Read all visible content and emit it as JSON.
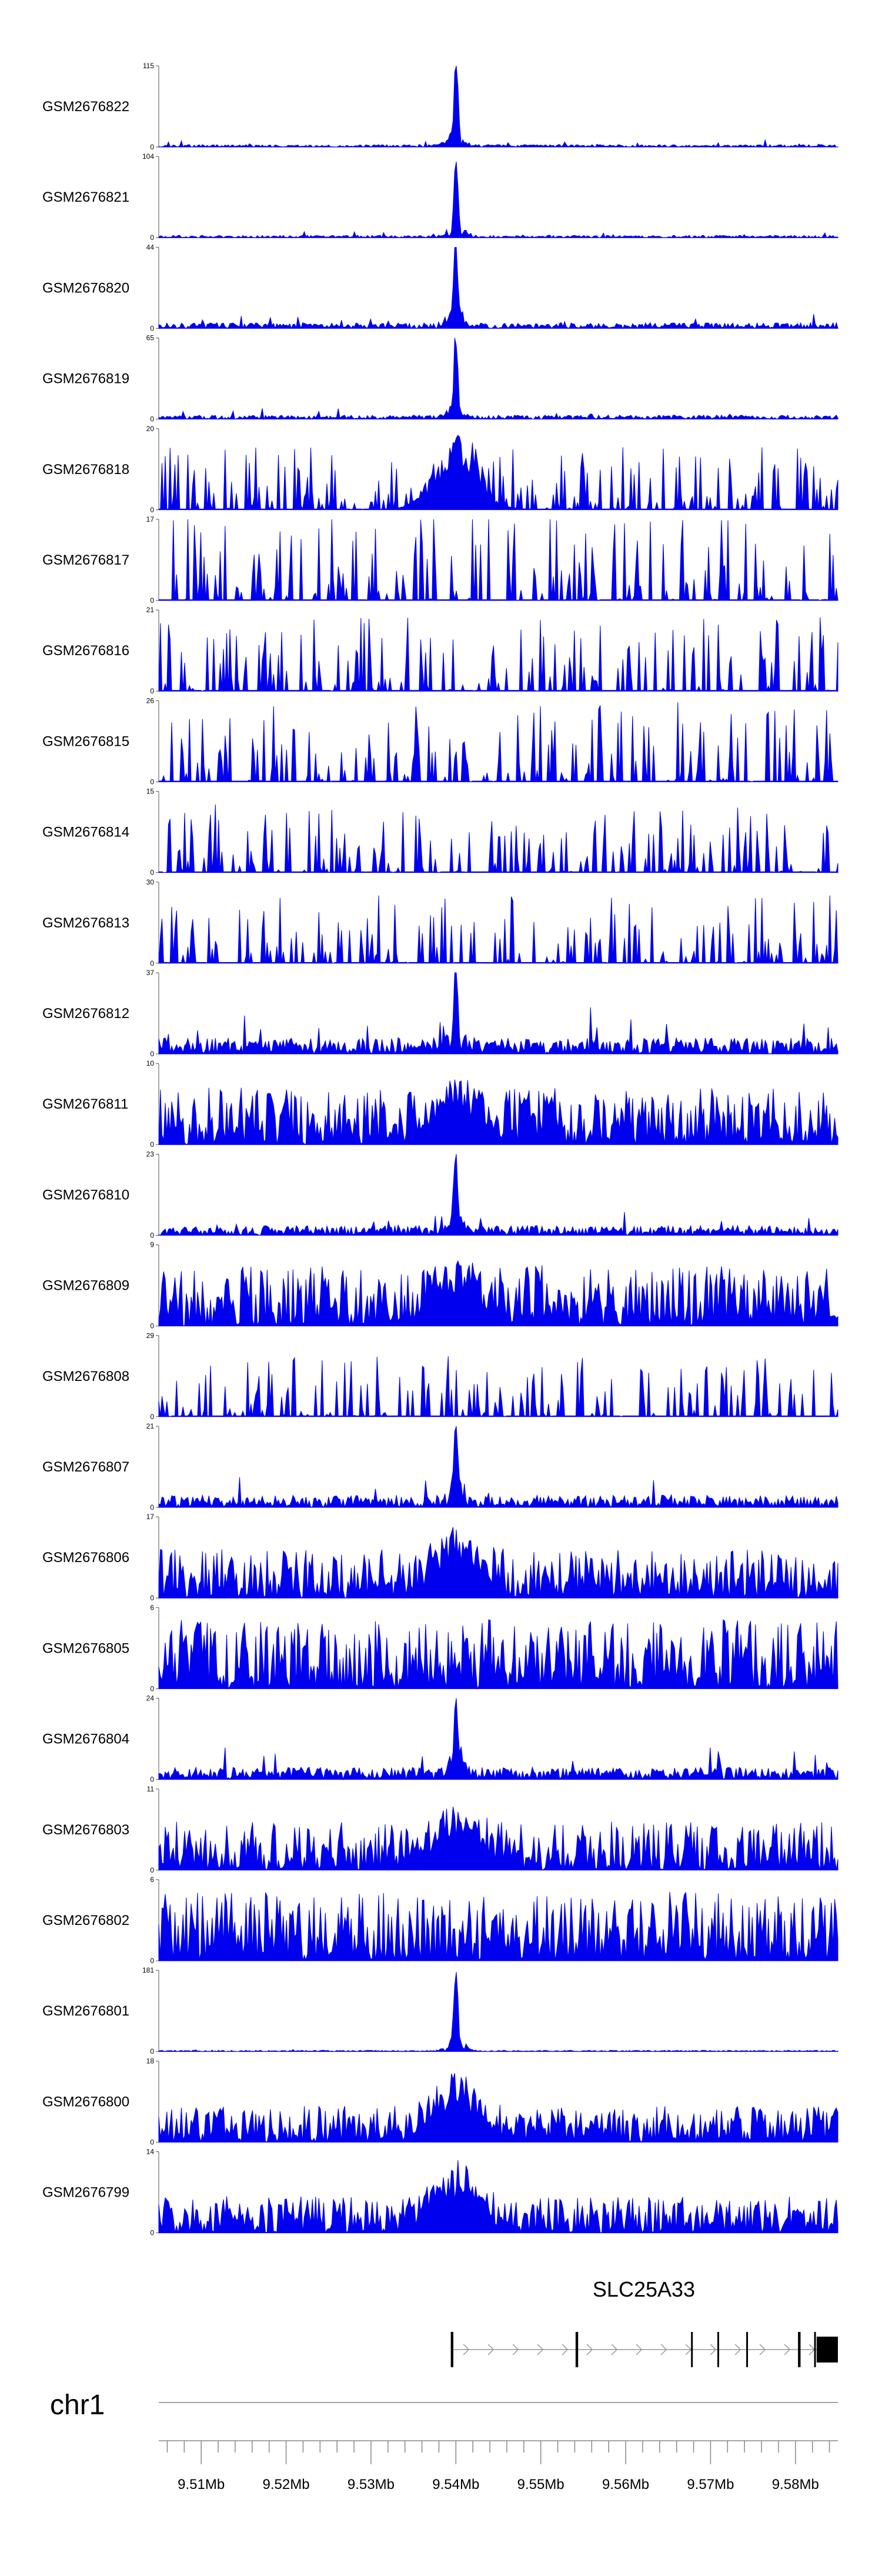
{
  "chart_data": {
    "type": "area",
    "subtype": "genome-browser-coverage-tracks",
    "color": "#0000ee",
    "x_domain": [
      9505000,
      9585000
    ],
    "x_ticks": [
      {
        "value": 9510000,
        "label": "9.51Mb"
      },
      {
        "value": 9520000,
        "label": "9.52Mb"
      },
      {
        "value": 9530000,
        "label": "9.53Mb"
      },
      {
        "value": 9540000,
        "label": "9.54Mb"
      },
      {
        "value": 9550000,
        "label": "9.55Mb"
      },
      {
        "value": 9560000,
        "label": "9.56Mb"
      },
      {
        "value": 9570000,
        "label": "9.57Mb"
      },
      {
        "value": 9580000,
        "label": "9.58Mb"
      }
    ],
    "chromosome": "chr1",
    "gene": {
      "name": "SLC25A33",
      "start": 9539500,
      "end": 9585000,
      "strand": "+",
      "exons": [
        [
          9539400,
          9539700
        ],
        [
          9554100,
          9554400
        ],
        [
          9567700,
          9567900
        ],
        [
          9570800,
          9571000
        ],
        [
          9574200,
          9574400
        ],
        [
          9580300,
          9580600
        ],
        [
          9582200,
          9582400
        ],
        [
          9582500,
          9585000
        ]
      ]
    },
    "tracks": [
      {
        "name": "GSM2676822",
        "ymax": "115",
        "ymin": "0",
        "profile": "peak",
        "peak_pos": 9540000,
        "noise": 0.03,
        "peak_height": 1.0
      },
      {
        "name": "GSM2676821",
        "ymax": "104",
        "ymin": "0",
        "profile": "peak",
        "peak_pos": 9540000,
        "noise": 0.03,
        "peak_height": 1.0
      },
      {
        "name": "GSM2676820",
        "ymax": "44",
        "ymin": "0",
        "profile": "peak",
        "peak_pos": 9540000,
        "noise": 0.07,
        "peak_height": 1.0
      },
      {
        "name": "GSM2676819",
        "ymax": "65",
        "ymin": "0",
        "profile": "peak",
        "peak_pos": 9540000,
        "noise": 0.05,
        "peak_height": 1.0
      },
      {
        "name": "GSM2676818",
        "ymax": "20",
        "ymin": "0",
        "profile": "sparse",
        "peak_pos": 9540000,
        "noise": 0.55,
        "peak_height": 1.0
      },
      {
        "name": "GSM2676817",
        "ymax": "17",
        "ymin": "0",
        "profile": "sparse",
        "peak_pos": 0,
        "noise": 0.75,
        "peak_height": 0
      },
      {
        "name": "GSM2676816",
        "ymax": "21",
        "ymin": "0",
        "profile": "sparse",
        "peak_pos": 0,
        "noise": 0.65,
        "peak_height": 0
      },
      {
        "name": "GSM2676815",
        "ymax": "26",
        "ymin": "0",
        "profile": "sparse",
        "peak_pos": 0,
        "noise": 0.7,
        "peak_height": 0
      },
      {
        "name": "GSM2676814",
        "ymax": "15",
        "ymin": "0",
        "profile": "sparse",
        "peak_pos": 0,
        "noise": 0.6,
        "peak_height": 0
      },
      {
        "name": "GSM2676813",
        "ymax": "30",
        "ymin": "0",
        "profile": "sparse",
        "peak_pos": 0,
        "noise": 0.6,
        "peak_height": 0
      },
      {
        "name": "GSM2676812",
        "ymax": "37",
        "ymin": "0",
        "profile": "peak",
        "peak_pos": 9540000,
        "noise": 0.2,
        "peak_height": 1.0
      },
      {
        "name": "GSM2676811",
        "ymax": "10",
        "ymin": "0",
        "profile": "dense",
        "peak_pos": 9540000,
        "noise": 0.7,
        "peak_height": 0.9
      },
      {
        "name": "GSM2676810",
        "ymax": "23",
        "ymin": "0",
        "profile": "peak",
        "peak_pos": 9540000,
        "noise": 0.12,
        "peak_height": 1.0
      },
      {
        "name": "GSM2676809",
        "ymax": "9",
        "ymin": "0",
        "profile": "dense",
        "peak_pos": 9540000,
        "noise": 0.75,
        "peak_height": 0.9
      },
      {
        "name": "GSM2676808",
        "ymax": "29",
        "ymin": "0",
        "profile": "sparse",
        "peak_pos": 0,
        "noise": 0.55,
        "peak_height": 0
      },
      {
        "name": "GSM2676807",
        "ymax": "21",
        "ymin": "0",
        "profile": "peak",
        "peak_pos": 9540000,
        "noise": 0.15,
        "peak_height": 1.0
      },
      {
        "name": "GSM2676806",
        "ymax": "17",
        "ymin": "0",
        "profile": "dense",
        "peak_pos": 9540000,
        "noise": 0.6,
        "peak_height": 0.9
      },
      {
        "name": "GSM2676805",
        "ymax": "6",
        "ymin": "0",
        "profile": "dense",
        "peak_pos": 0,
        "noise": 0.85,
        "peak_height": 0
      },
      {
        "name": "GSM2676804",
        "ymax": "24",
        "ymin": "0",
        "profile": "peak",
        "peak_pos": 9540000,
        "noise": 0.15,
        "peak_height": 1.0
      },
      {
        "name": "GSM2676803",
        "ymax": "11",
        "ymin": "0",
        "profile": "dense",
        "peak_pos": 9540000,
        "noise": 0.6,
        "peak_height": 0.85
      },
      {
        "name": "GSM2676802",
        "ymax": "6",
        "ymin": "0",
        "profile": "dense",
        "peak_pos": 0,
        "noise": 0.85,
        "peak_height": 0
      },
      {
        "name": "GSM2676801",
        "ymax": "181",
        "ymin": "0",
        "profile": "peak",
        "peak_pos": 9540000,
        "noise": 0.015,
        "peak_height": 1.0
      },
      {
        "name": "GSM2676800",
        "ymax": "18",
        "ymin": "0",
        "profile": "dense",
        "peak_pos": 9540000,
        "noise": 0.45,
        "peak_height": 0.9
      },
      {
        "name": "GSM2676799",
        "ymax": "14",
        "ymin": "0",
        "profile": "dense",
        "peak_pos": 9540000,
        "noise": 0.45,
        "peak_height": 0.9
      }
    ]
  }
}
